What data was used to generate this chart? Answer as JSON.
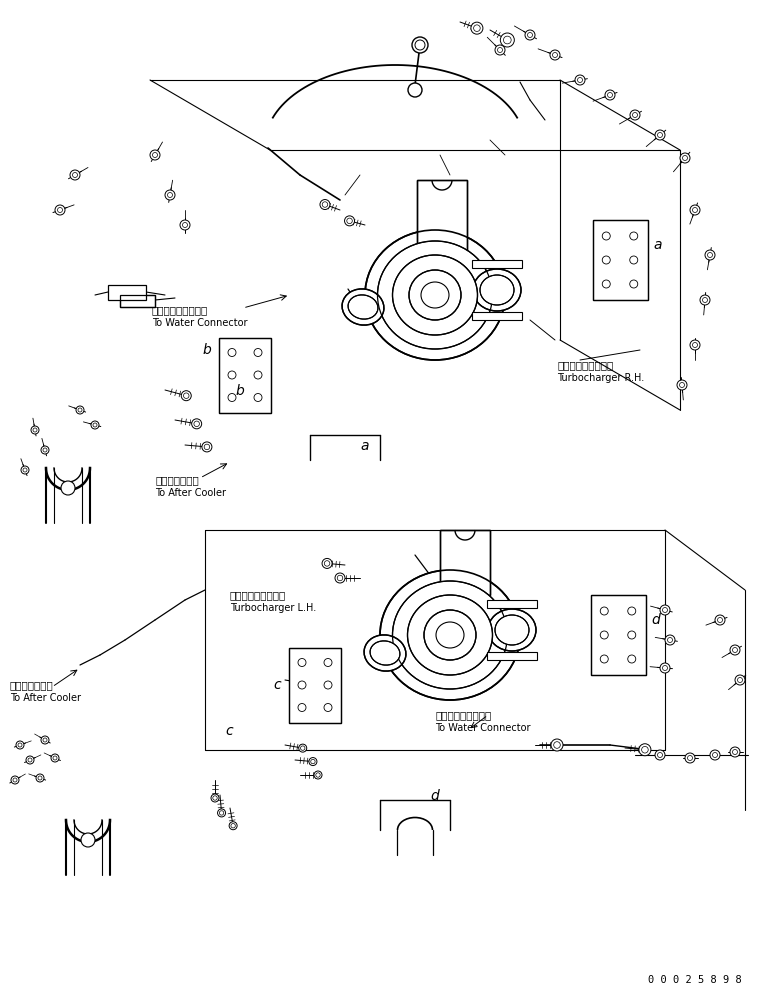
{
  "figure_width": 7.59,
  "figure_height": 9.86,
  "dpi": 100,
  "bg_color": "#ffffff",
  "line_color": "#000000",
  "line_width": 0.8,
  "part_number": "0 0 0 2 5 8 9 8",
  "labels": {
    "water_connector_rh_jp": "ウォータコネクタへ",
    "water_connector_rh_en": "To Water Connector",
    "turbocharger_rh_jp": "ターボチャージャ右",
    "turbocharger_rh_en": "Turbocharger R.H.",
    "after_cooler_rh_jp": "アフタクーラへ",
    "after_cooler_rh_en": "To After Cooler",
    "turbocharger_lh_jp": "ターボチャージャ左",
    "turbocharger_lh_en": "Turbocharger L.H.",
    "after_cooler_lh_jp": "アフタクーラへ",
    "after_cooler_lh_en": "To After Cooler",
    "water_connector_lh_jp": "ウォータコネクタへ",
    "water_connector_lh_en": "To Water Connector"
  },
  "font_size_jp": 7.5,
  "font_size_en": 7.0,
  "font_size_label": 10,
  "font_size_part": 7.5
}
